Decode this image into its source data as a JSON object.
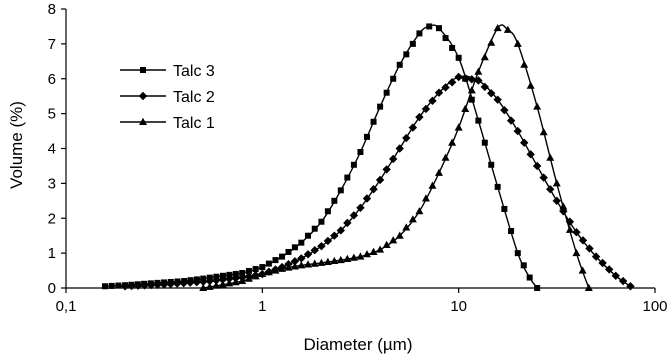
{
  "chart_data": {
    "type": "line",
    "title": "",
    "xlabel": "Diameter (µm)",
    "ylabel": "Volume (%)",
    "x_scale": "log",
    "xlim": [
      0.1,
      100
    ],
    "ylim": [
      0,
      8
    ],
    "x_ticks": [
      0.1,
      1,
      10,
      100
    ],
    "x_tick_labels": [
      "0,1",
      "1",
      "10",
      "100"
    ],
    "y_ticks": [
      0,
      1,
      2,
      3,
      4,
      5,
      6,
      7,
      8
    ],
    "y_tick_labels": [
      "0",
      "1",
      "2",
      "3",
      "4",
      "5",
      "6",
      "7",
      "8"
    ],
    "grid": false,
    "legend_position": "top-left",
    "series": [
      {
        "name": "Talc 3",
        "marker": "square",
        "points": [
          [
            0.158,
            0.05
          ],
          [
            0.2,
            0.08
          ],
          [
            0.25,
            0.12
          ],
          [
            0.316,
            0.16
          ],
          [
            0.4,
            0.2
          ],
          [
            0.5,
            0.27
          ],
          [
            0.63,
            0.35
          ],
          [
            0.79,
            0.43
          ],
          [
            1.0,
            0.6
          ],
          [
            1.26,
            0.9
          ],
          [
            1.58,
            1.3
          ],
          [
            2.0,
            1.9
          ],
          [
            2.51,
            2.8
          ],
          [
            3.16,
            3.9
          ],
          [
            3.98,
            5.2
          ],
          [
            5.01,
            6.4
          ],
          [
            6.31,
            7.3
          ],
          [
            7.08,
            7.5
          ],
          [
            7.94,
            7.45
          ],
          [
            10.0,
            6.6
          ],
          [
            12.6,
            4.8
          ],
          [
            15.8,
            2.9
          ],
          [
            20.0,
            1.0
          ],
          [
            23.0,
            0.3
          ],
          [
            25.1,
            0.0
          ]
        ]
      },
      {
        "name": "Talc 2",
        "marker": "diamond",
        "points": [
          [
            0.2,
            0.05
          ],
          [
            0.316,
            0.1
          ],
          [
            0.5,
            0.18
          ],
          [
            0.79,
            0.3
          ],
          [
            1.0,
            0.4
          ],
          [
            1.26,
            0.6
          ],
          [
            1.58,
            0.85
          ],
          [
            2.0,
            1.2
          ],
          [
            2.51,
            1.65
          ],
          [
            3.16,
            2.3
          ],
          [
            3.98,
            3.1
          ],
          [
            5.01,
            4.0
          ],
          [
            6.31,
            4.9
          ],
          [
            7.94,
            5.6
          ],
          [
            10.0,
            6.05
          ],
          [
            12.6,
            5.95
          ],
          [
            15.8,
            5.4
          ],
          [
            20.0,
            4.5
          ],
          [
            25.1,
            3.5
          ],
          [
            31.6,
            2.5
          ],
          [
            39.8,
            1.6
          ],
          [
            50.1,
            0.9
          ],
          [
            63.1,
            0.35
          ],
          [
            75.0,
            0.05
          ]
        ]
      },
      {
        "name": "Talc 1",
        "marker": "triangle",
        "points": [
          [
            0.5,
            0.0
          ],
          [
            0.79,
            0.2
          ],
          [
            1.0,
            0.4
          ],
          [
            1.26,
            0.55
          ],
          [
            1.58,
            0.65
          ],
          [
            2.0,
            0.72
          ],
          [
            2.51,
            0.8
          ],
          [
            3.16,
            0.9
          ],
          [
            3.98,
            1.1
          ],
          [
            5.01,
            1.5
          ],
          [
            6.31,
            2.2
          ],
          [
            7.94,
            3.3
          ],
          [
            10.0,
            4.6
          ],
          [
            12.6,
            6.2
          ],
          [
            15.8,
            7.45
          ],
          [
            17.8,
            7.4
          ],
          [
            20.0,
            7.0
          ],
          [
            25.1,
            5.2
          ],
          [
            31.6,
            3.0
          ],
          [
            39.8,
            1.0
          ],
          [
            46.0,
            0.0
          ]
        ]
      }
    ]
  }
}
